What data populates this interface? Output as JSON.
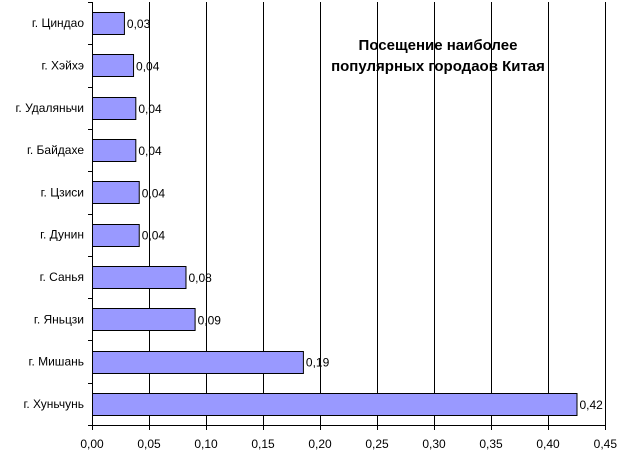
{
  "chart_data": {
    "type": "bar",
    "orientation": "horizontal",
    "title": "Посещение наиболее популярных городаов Китая",
    "title_lines": [
      "Посещение наиболее",
      "популярных городаов Китая"
    ],
    "categories": [
      "г. Циндао",
      "г. Хэйхэ",
      "г. Удаляньчи",
      "г. Байдахе",
      "г. Цзиси",
      "г. Дунин",
      "г. Санья",
      "г. Яньцзи",
      "г. Мишань",
      "г. Хуньчунь"
    ],
    "values": [
      0.028,
      0.036,
      0.038,
      0.038,
      0.041,
      0.041,
      0.082,
      0.09,
      0.185,
      0.425
    ],
    "data_labels": [
      "0,03",
      "0,04",
      "0,04",
      "0,04",
      "0,04",
      "0,04",
      "0,08",
      "0,09",
      "0,19",
      "0,42"
    ],
    "x_ticks": [
      "0,00",
      "0,05",
      "0,10",
      "0,15",
      "0,20",
      "0,25",
      "0,30",
      "0,35",
      "0,40",
      "0,45"
    ],
    "xlim": [
      0,
      0.45
    ],
    "xlabel": "",
    "ylabel": "",
    "grid": "vertical",
    "legend": "none",
    "colors": {
      "bar_fill": "#9999ff",
      "bar_stroke": "#000000",
      "grid": "#000000",
      "background": "#ffffff"
    }
  }
}
